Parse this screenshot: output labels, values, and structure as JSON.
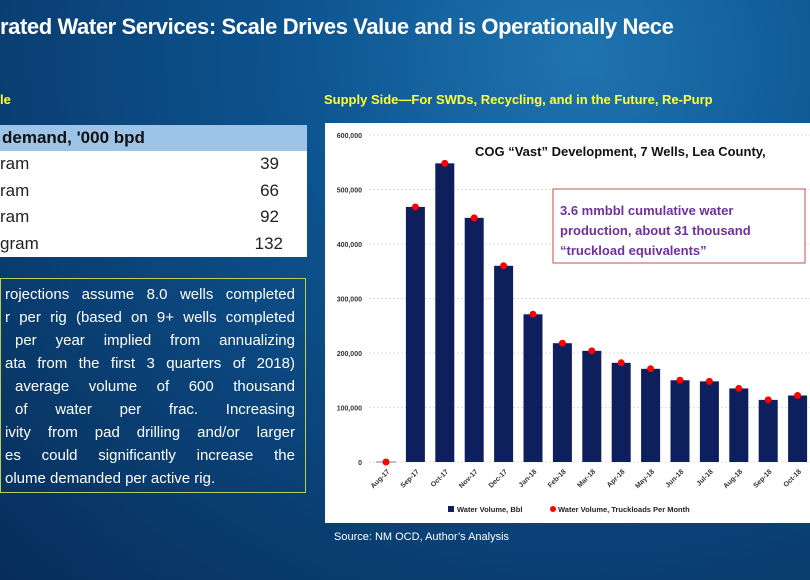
{
  "slide": {
    "title": "rated Water Services: Scale Drives Value and is Operationally Nece",
    "left_heading": "le",
    "right_heading": "Supply Side—For SWDs, Recycling, and in the Future, Re-Purp",
    "source": "Source: NM OCD, Author’s Analysis"
  },
  "table": {
    "header": "demand, '000 bpd",
    "rows": [
      {
        "label": "ram",
        "value": "39"
      },
      {
        "label": "ram",
        "value": "66"
      },
      {
        "label": "ram",
        "value": "92"
      },
      {
        "label": "gram",
        "value": "132"
      }
    ]
  },
  "note": {
    "lines": [
      "rojections assume 8.0 wells completed",
      "r per rig (based on 9+ wells completed",
      "per year implied from annualizing",
      "ata from the first 3 quarters of 2018)",
      "average volume of 600 thousand",
      "of water per frac. Increasing",
      "ivity from pad drilling and/or larger",
      "es could significantly increase the",
      "olume demanded per active rig."
    ]
  },
  "chart_data": {
    "type": "bar",
    "title": "COG “Vast” Development, 7 Wells, Lea County,",
    "annotation": [
      "3.6 mmbbl cumulative water",
      "production, about 31 thousand",
      "“truckload equivalents”"
    ],
    "categories": [
      "Aug-17",
      "Sep-17",
      "Oct-17",
      "Nov-17",
      "Dec-17",
      "Jan-18",
      "Feb-18",
      "Mar-18",
      "Apr-18",
      "May-18",
      "Jun-18",
      "Jul-18",
      "Aug-18",
      "Sep-18",
      "Oct-18"
    ],
    "series": [
      {
        "name": "Water Volume, Bbl",
        "kind": "bar",
        "color": "#0e1f5e",
        "values": [
          0,
          468000,
          548000,
          448000,
          360000,
          271000,
          218000,
          204000,
          182000,
          171000,
          150000,
          148000,
          135000,
          114000,
          122000
        ]
      },
      {
        "name": "Water Volume, Truckloads Per Month",
        "kind": "marker",
        "color": "#ff0000"
      }
    ],
    "ylim": [
      0,
      600000
    ],
    "yticks": [
      "0",
      "100,000",
      "200,000",
      "300,000",
      "400,000",
      "500,000",
      "600,000"
    ],
    "grid": true,
    "legend": "bottom"
  }
}
